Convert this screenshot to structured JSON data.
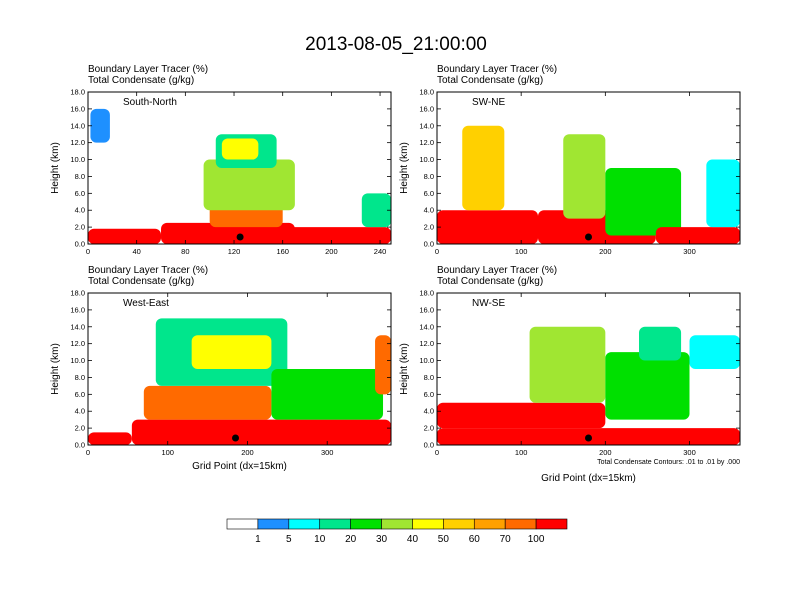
{
  "chart_data": {
    "type": "heatmap",
    "title": "2013-08-05_21:00:00",
    "colorbar": {
      "levels": [
        "1",
        "5",
        "10",
        "20",
        "30",
        "40",
        "50",
        "60",
        "70",
        "100"
      ],
      "colors": [
        "#ffffff",
        "#1e90ff",
        "#00ffff",
        "#00e68c",
        "#00e000",
        "#a0e632",
        "#ffff00",
        "#ffd000",
        "#ffa000",
        "#ff6a00",
        "#ff0000"
      ]
    },
    "footnote": "Total Condensate Contours: .01 to .01 by .000",
    "panels": [
      {
        "id": "south-north",
        "label": "South-North",
        "field_label": "Boundary Layer Tracer   (%)",
        "contour_label": "Total Condensate   (g/kg)",
        "ylabel": "Height (km)",
        "xlabel": "",
        "ylim": [
          0,
          18
        ],
        "yticks": [
          "0.0",
          "2.0",
          "4.0",
          "6.0",
          "8.0",
          "10.0",
          "12.0",
          "14.0",
          "16.0",
          "18.0"
        ],
        "xlim": [
          0,
          249
        ],
        "xticks": [
          0,
          40,
          80,
          120,
          160,
          200,
          240
        ],
        "marker_x": 125,
        "cells": [
          {
            "x0": 0,
            "x1": 60,
            "y0": 0,
            "y1": 1.8,
            "level": 10
          },
          {
            "x0": 60,
            "x1": 170,
            "y0": 0,
            "y1": 2.5,
            "level": 10
          },
          {
            "x0": 100,
            "x1": 160,
            "y0": 2,
            "y1": 6,
            "level": 9
          },
          {
            "x0": 95,
            "x1": 170,
            "y0": 4,
            "y1": 10,
            "level": 5
          },
          {
            "x0": 105,
            "x1": 155,
            "y0": 9,
            "y1": 13,
            "level": 3
          },
          {
            "x0": 110,
            "x1": 140,
            "y0": 10,
            "y1": 12.5,
            "level": 6
          },
          {
            "x0": 160,
            "x1": 249,
            "y0": 0,
            "y1": 2,
            "level": 10
          },
          {
            "x0": 2,
            "x1": 18,
            "y0": 12,
            "y1": 16,
            "level": 1
          },
          {
            "x0": 225,
            "x1": 249,
            "y0": 2,
            "y1": 6,
            "level": 3
          }
        ]
      },
      {
        "id": "sw-ne",
        "label": "SW-NE",
        "field_label": "Boundary Layer Tracer   (%)",
        "contour_label": "Total Condensate   (g/kg)",
        "ylabel": "Height (km)",
        "xlabel": "",
        "ylim": [
          0,
          18
        ],
        "yticks": [
          "0.0",
          "2.0",
          "4.0",
          "6.0",
          "8.0",
          "10.0",
          "12.0",
          "14.0",
          "16.0",
          "18.0"
        ],
        "xlim": [
          0,
          360
        ],
        "xticks": [
          0,
          100,
          200,
          300
        ],
        "marker_x": 180,
        "cells": [
          {
            "x0": 0,
            "x1": 120,
            "y0": 0,
            "y1": 4,
            "level": 10
          },
          {
            "x0": 30,
            "x1": 80,
            "y0": 4,
            "y1": 14,
            "level": 7
          },
          {
            "x0": 120,
            "x1": 260,
            "y0": 0,
            "y1": 4,
            "level": 10
          },
          {
            "x0": 150,
            "x1": 200,
            "y0": 3,
            "y1": 13,
            "level": 5
          },
          {
            "x0": 200,
            "x1": 290,
            "y0": 1,
            "y1": 9,
            "level": 4
          },
          {
            "x0": 260,
            "x1": 360,
            "y0": 0,
            "y1": 2,
            "level": 10
          },
          {
            "x0": 320,
            "x1": 360,
            "y0": 2,
            "y1": 10,
            "level": 2
          }
        ]
      },
      {
        "id": "west-east",
        "label": "West-East",
        "field_label": "Boundary Layer Tracer   (%)",
        "contour_label": "Total Condensate   (g/kg)",
        "ylabel": "Height (km)",
        "xlabel": "Grid Point (dx=15km)",
        "ylim": [
          0,
          18
        ],
        "yticks": [
          "0.0",
          "2.0",
          "4.0",
          "6.0",
          "8.0",
          "10.0",
          "12.0",
          "14.0",
          "16.0",
          "18.0"
        ],
        "xlim": [
          0,
          380
        ],
        "xticks": [
          0,
          100,
          200,
          300
        ],
        "marker_x": 185,
        "cells": [
          {
            "x0": 0,
            "x1": 55,
            "y0": 0,
            "y1": 1.5,
            "level": 10
          },
          {
            "x0": 55,
            "x1": 380,
            "y0": 0,
            "y1": 3,
            "level": 10
          },
          {
            "x0": 70,
            "x1": 230,
            "y0": 3,
            "y1": 7,
            "level": 9
          },
          {
            "x0": 85,
            "x1": 250,
            "y0": 7,
            "y1": 15,
            "level": 3
          },
          {
            "x0": 130,
            "x1": 230,
            "y0": 9,
            "y1": 13,
            "level": 6
          },
          {
            "x0": 230,
            "x1": 370,
            "y0": 3,
            "y1": 9,
            "level": 4
          },
          {
            "x0": 360,
            "x1": 380,
            "y0": 6,
            "y1": 13,
            "level": 9
          }
        ]
      },
      {
        "id": "nw-se",
        "label": "NW-SE",
        "field_label": "Boundary Layer Tracer   (%)",
        "contour_label": "Total Condensate   (g/kg)",
        "ylabel": "Height (km)",
        "xlabel": "Grid Point (dx=15km)",
        "ylim": [
          0,
          18
        ],
        "yticks": [
          "0.0",
          "2.0",
          "4.0",
          "6.0",
          "8.0",
          "10.0",
          "12.0",
          "14.0",
          "16.0",
          "18.0"
        ],
        "xlim": [
          0,
          360
        ],
        "xticks": [
          0,
          100,
          200,
          300
        ],
        "marker_x": 180,
        "cells": [
          {
            "x0": 0,
            "x1": 360,
            "y0": 0,
            "y1": 2,
            "level": 10
          },
          {
            "x0": 0,
            "x1": 200,
            "y0": 2,
            "y1": 5,
            "level": 10
          },
          {
            "x0": 110,
            "x1": 200,
            "y0": 5,
            "y1": 14,
            "level": 5
          },
          {
            "x0": 200,
            "x1": 300,
            "y0": 3,
            "y1": 11,
            "level": 4
          },
          {
            "x0": 240,
            "x1": 290,
            "y0": 10,
            "y1": 14,
            "level": 3
          },
          {
            "x0": 300,
            "x1": 360,
            "y0": 9,
            "y1": 13,
            "level": 2
          }
        ]
      }
    ]
  }
}
